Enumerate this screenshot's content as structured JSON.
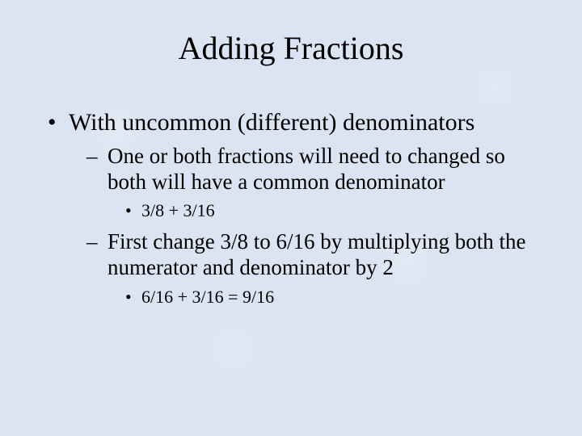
{
  "colors": {
    "background": "#dbe4f2",
    "text": "#000000"
  },
  "typography": {
    "family": "Times New Roman",
    "title_size_pt": 40,
    "lvl1_size_pt": 30,
    "lvl2_size_pt": 27,
    "lvl3_size_pt": 22
  },
  "slide": {
    "title": "Adding Fractions",
    "bullets": {
      "b1": "With uncommon (different) denominators",
      "b1_1": "One or both fractions will need to changed so both will have a common denominator",
      "b1_1_1": "3/8 + 3/16",
      "b1_2": "First change 3/8 to 6/16 by multiplying both the numerator and denominator by 2",
      "b1_2_1": "6/16 + 3/16 = 9/16"
    }
  }
}
